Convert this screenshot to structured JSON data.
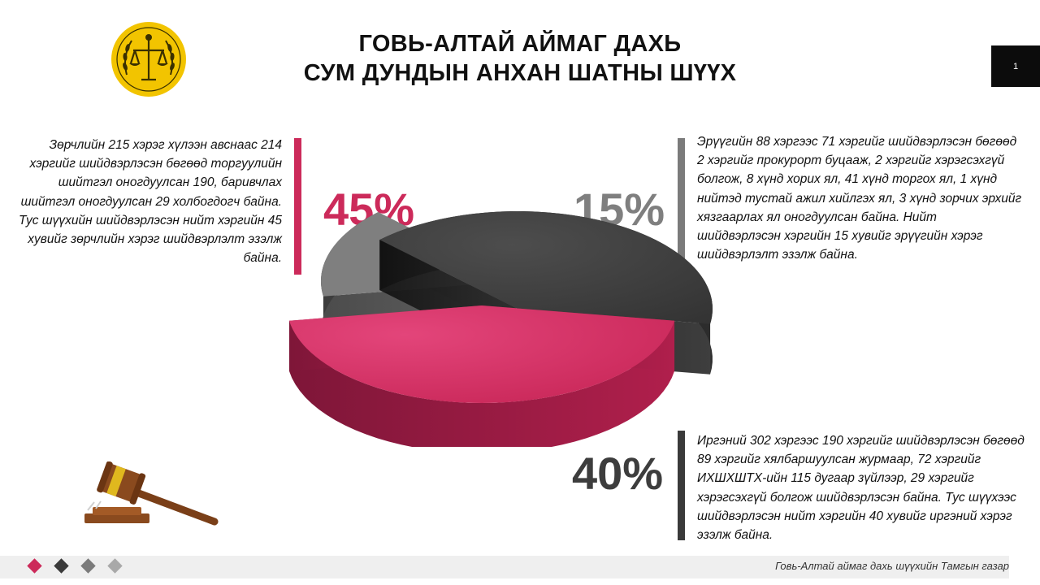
{
  "header": {
    "title_line1": "ГОВЬ-АЛТАЙ АЙМАГ ДАХЬ",
    "title_line2": "СУМ ДУНДЫН АНХАН ШАТНЫ ШҮҮХ",
    "page_number": "1"
  },
  "notes": {
    "left": "Зөрчлийн 215 хэрэг хүлээн авснаас 214 хэргийг шийдвэрлэсэн бөгөөд торгуулийн шийтгэл оногдуулсан 190, баривчлах шийтгэл оногдуулсан 29 холбогдогч байна. Тус шүүхийн шийдвэрлэсэн нийт хэргийн 45 хувийг зөрчлийн хэрэг шийдвэрлэлт эзэлж байна.",
    "right_top": "Эрүүгийн 88 хэргээс 71 хэргийг шийдвэрлэсэн бөгөөд 2 хэргийг прокурорт буцааж, 2 хэргийг хэрэгсэхгүй болгож, 8 хүнд хорих ял, 41 хүнд торгох ял, 1 хүнд нийтэд тустай ажил хийлгэх ял, 3 хүнд зорчих эрхийг хязгаарлах ял оногдуулсан байна. Нийт шийдвэрлэсэн хэргийн 15 хувийг эрүүгийн хэрэг шийдвэрлэлт эзэлж байна.",
    "right_bottom": "Иргэний 302 хэргээс 190 хэргийг шийдвэрлэсэн бөгөөд 89 хэргийг хялбаршуулсан журмаар, 72 хэргийг ИХШХШТХ-ийн 115 дугаар зүйлээр, 29 хэргийг хэрэгсэхгүй болгож шийдвэрлэсэн байна. Тус шүүхээс шийдвэрлэсэн нийт хэргийн 40 хувийг иргэний хэрэг эзэлж байна."
  },
  "chart_data": {
    "type": "pie",
    "values": [
      45,
      15,
      40
    ],
    "labels": [
      "45%",
      "15%",
      "40%"
    ],
    "colors": [
      "#cc2a5a",
      "#7f7f7f",
      "#3d3d3d"
    ]
  },
  "footer": {
    "text": "Говь-Алтай аймаг дахь шүүхийн Тамгын газар"
  }
}
